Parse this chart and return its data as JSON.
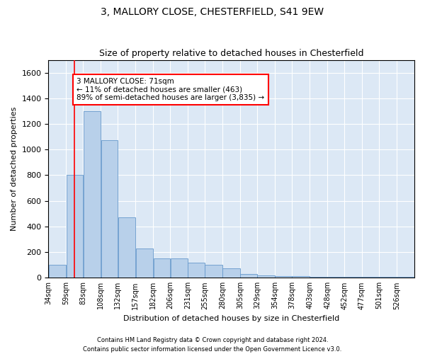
{
  "title1": "3, MALLORY CLOSE, CHESTERFIELD, S41 9EW",
  "title2": "Size of property relative to detached houses in Chesterfield",
  "xlabel": "Distribution of detached houses by size in Chesterfield",
  "ylabel": "Number of detached properties",
  "bar_color": "#b8d0ea",
  "bar_edge_color": "#6699cc",
  "bg_color": "#dce8f5",
  "grid_color": "#ffffff",
  "annotation_text": "3 MALLORY CLOSE: 71sqm\n← 11% of detached houses are smaller (463)\n89% of semi-detached houses are larger (3,835) →",
  "property_line_x": 71,
  "categories": [
    "34sqm",
    "59sqm",
    "83sqm",
    "108sqm",
    "132sqm",
    "157sqm",
    "182sqm",
    "206sqm",
    "231sqm",
    "255sqm",
    "280sqm",
    "305sqm",
    "329sqm",
    "354sqm",
    "378sqm",
    "403sqm",
    "428sqm",
    "452sqm",
    "477sqm",
    "501sqm",
    "526sqm"
  ],
  "bin_edges": [
    34,
    59,
    83,
    108,
    132,
    157,
    182,
    206,
    231,
    255,
    280,
    305,
    329,
    354,
    378,
    403,
    428,
    452,
    477,
    501,
    526,
    551
  ],
  "values": [
    100,
    800,
    1300,
    1075,
    470,
    230,
    150,
    150,
    115,
    100,
    75,
    30,
    20,
    10,
    10,
    5,
    5,
    5,
    5,
    5,
    5
  ],
  "ylim": [
    0,
    1700
  ],
  "yticks": [
    0,
    200,
    400,
    600,
    800,
    1000,
    1200,
    1400,
    1600
  ],
  "footer1": "Contains HM Land Registry data © Crown copyright and database right 2024.",
  "footer2": "Contains public sector information licensed under the Open Government Licence v3.0."
}
